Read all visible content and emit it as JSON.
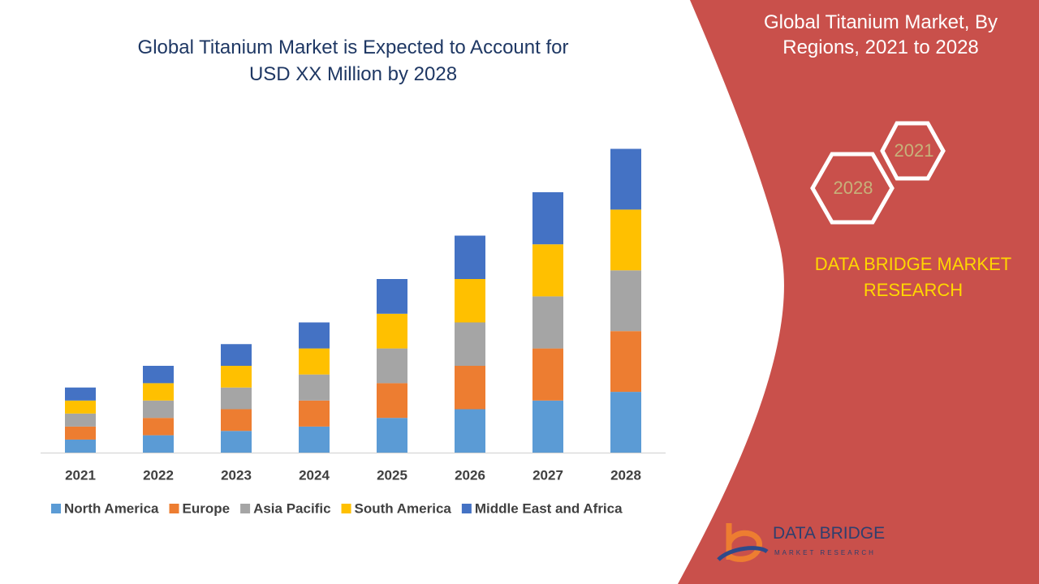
{
  "chart_data": {
    "type": "stacked_bar",
    "title": "Global Titanium Market is Expected to Account for USD XX Million by 2028",
    "categories": [
      "2021",
      "2022",
      "2023",
      "2024",
      "2025",
      "2026",
      "2027",
      "2028"
    ],
    "series": [
      {
        "name": "North America",
        "color": "#5b9bd5",
        "values": [
          3,
          4,
          5,
          6,
          8,
          10,
          12,
          14
        ]
      },
      {
        "name": "Europe",
        "color": "#ed7d31",
        "values": [
          3,
          4,
          5,
          6,
          8,
          10,
          12,
          14
        ]
      },
      {
        "name": "Asia Pacific",
        "color": "#a5a5a5",
        "values": [
          3,
          4,
          5,
          6,
          8,
          10,
          12,
          14
        ]
      },
      {
        "name": "South America",
        "color": "#ffc000",
        "values": [
          3,
          4,
          5,
          6,
          8,
          10,
          12,
          14
        ]
      },
      {
        "name": "Middle East and Africa",
        "color": "#4472c4",
        "values": [
          3,
          4,
          5,
          6,
          8,
          10,
          12,
          14
        ]
      }
    ]
  },
  "side_panel": {
    "title": "Global Titanium Market, By Regions, 2021 to 2028",
    "hexagons": [
      "2021",
      "2028"
    ],
    "brand": "DATA BRIDGE MARKET RESEARCH",
    "logo": {
      "name": "DATA BRIDGE",
      "tagline": "MARKET RESEARCH"
    }
  }
}
